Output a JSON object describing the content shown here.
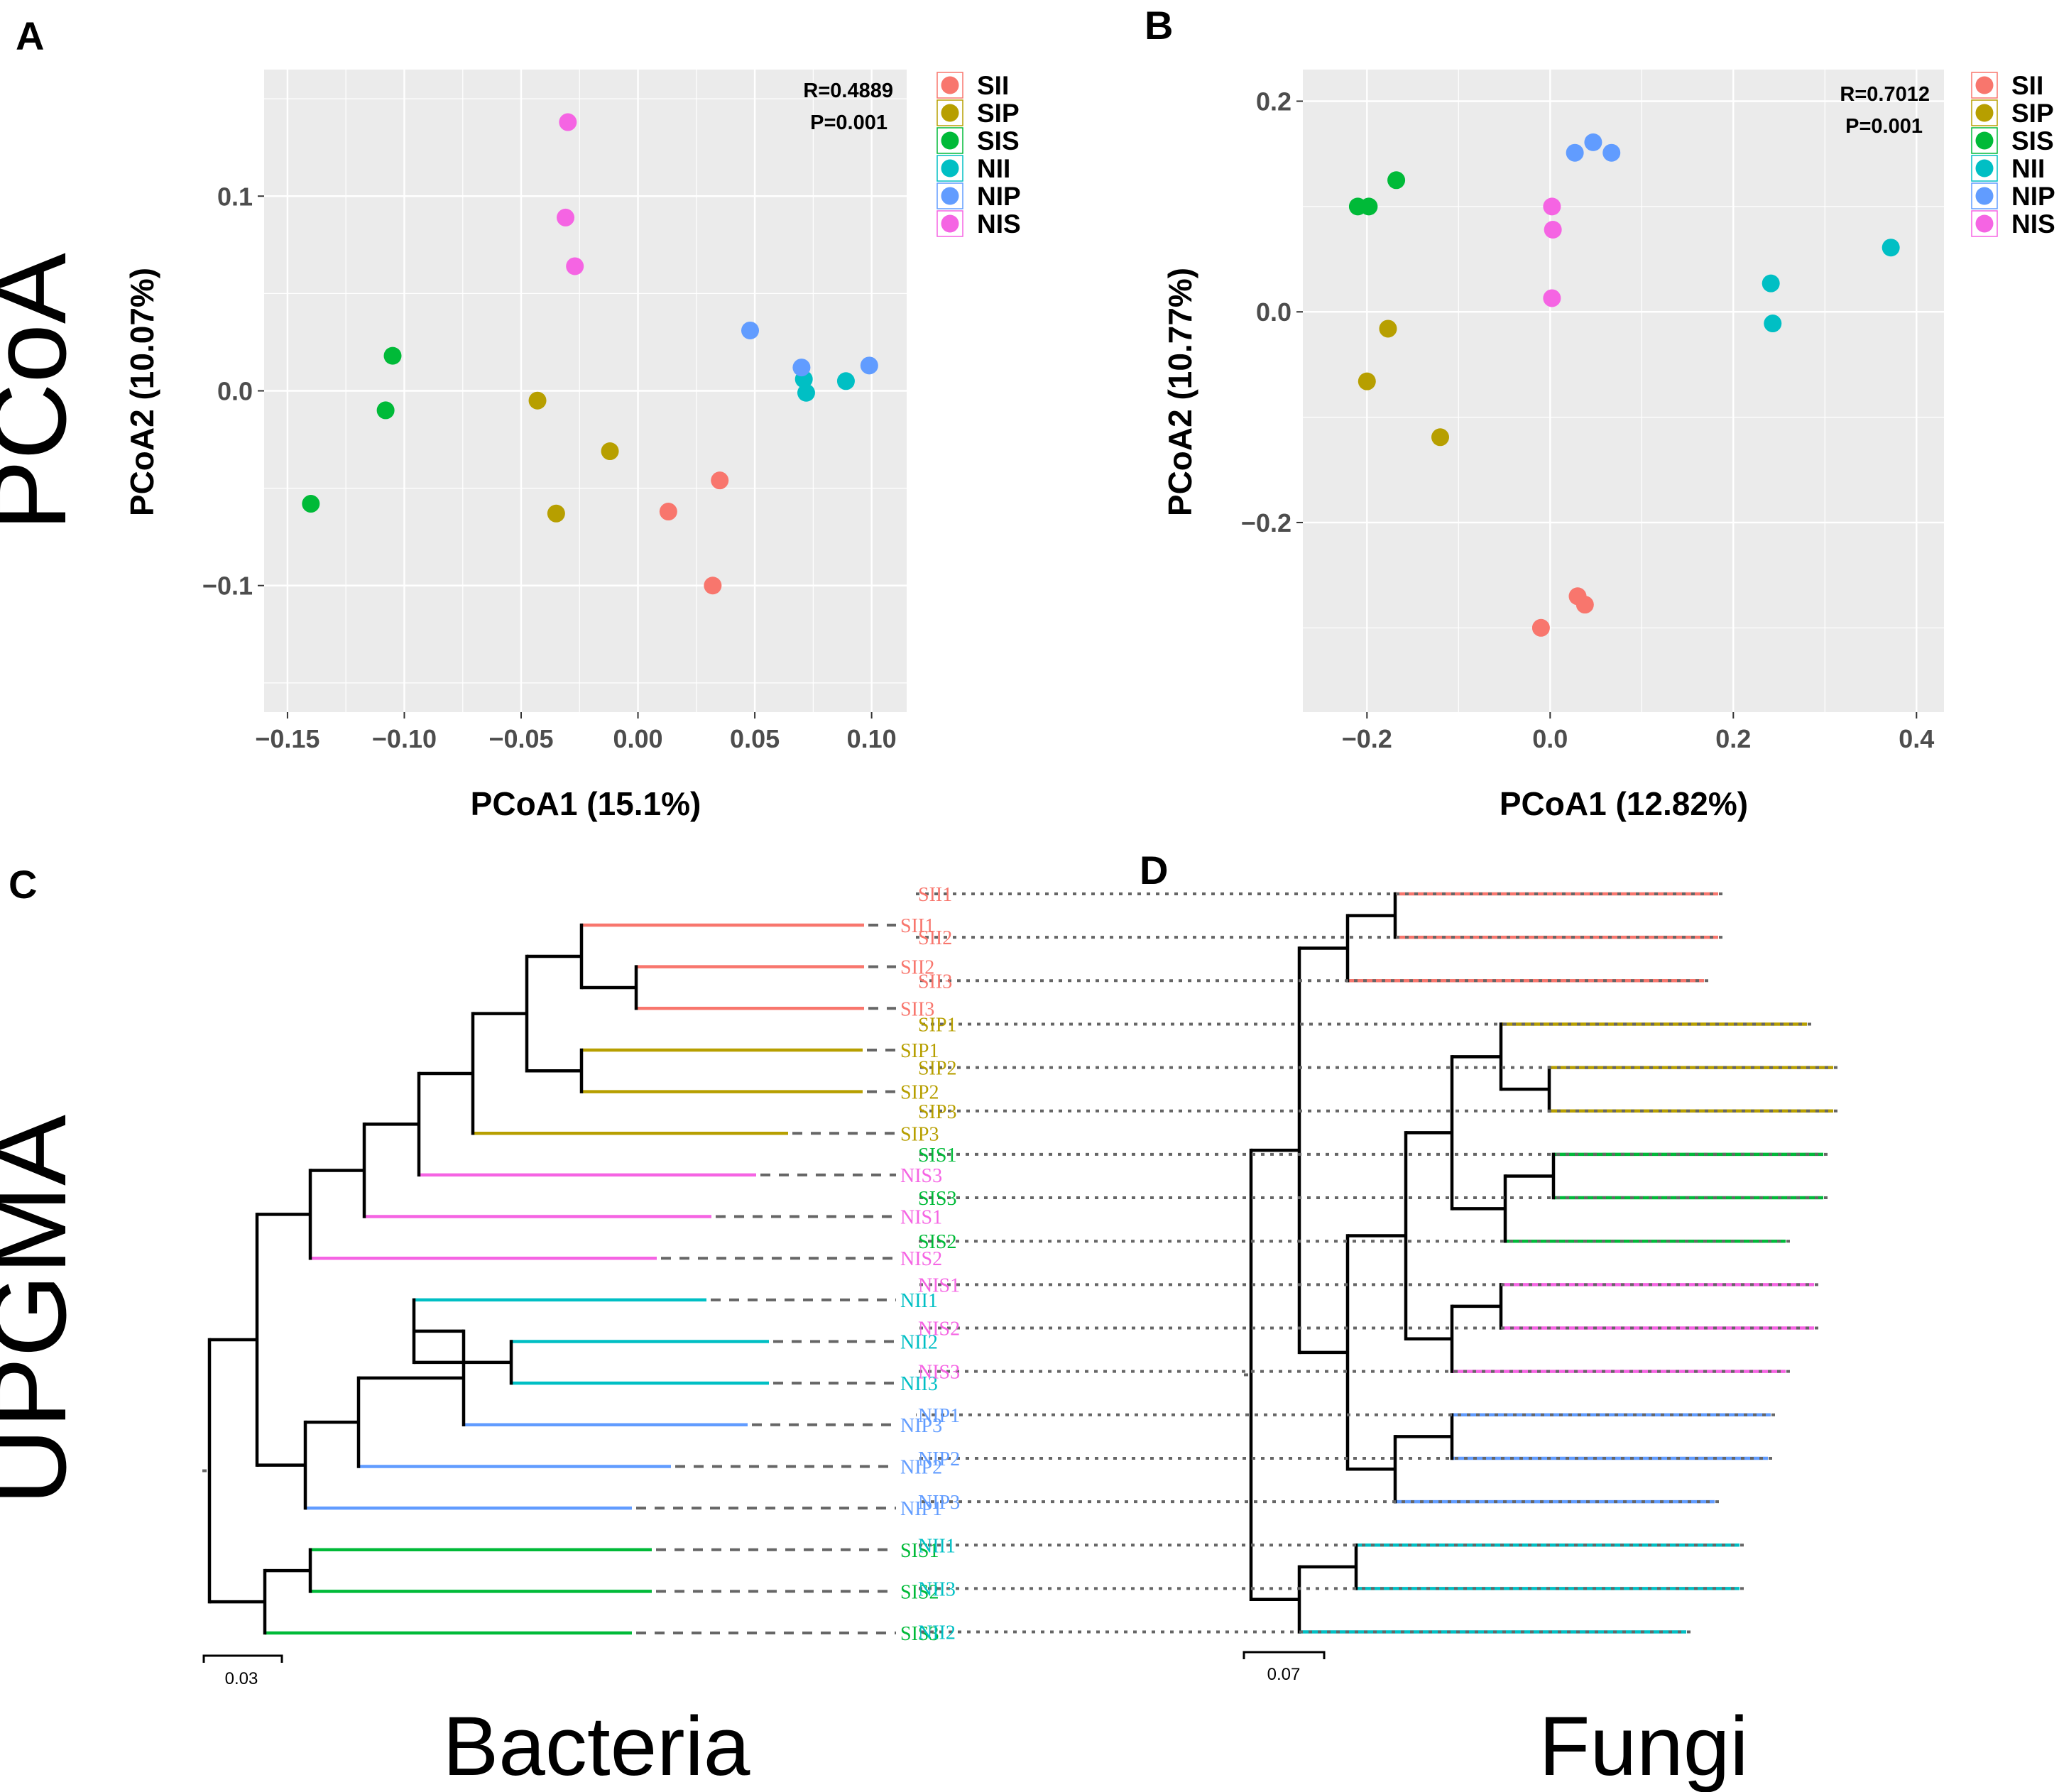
{
  "figure": {
    "row_labels": {
      "pcoa": "PCoA",
      "upgma": "UPGMA"
    },
    "col_labels": {
      "bacteria": "Bacteria",
      "fungi": "Fungi"
    }
  },
  "colors": {
    "SII": "#f8766d",
    "SIP": "#b79f00",
    "SIS": "#00ba38",
    "NII": "#00bfc4",
    "NIP": "#619cff",
    "NIS": "#f564e3",
    "panel_bg": "#ebebeb",
    "grid": "#ffffff"
  },
  "chart_data": [
    {
      "panel": "A",
      "type": "scatter",
      "xlabel": "PCoA1 (15.1%)",
      "ylabel": "PCoA2 (10.07%)",
      "xlim": [
        -0.16,
        0.115
      ],
      "ylim": [
        -0.165,
        0.165
      ],
      "xticks": [
        -0.15,
        -0.1,
        -0.05,
        0.0,
        0.05,
        0.1
      ],
      "xtick_labels": [
        "−0.15",
        "−0.10",
        "−0.05",
        "0.00",
        "0.05",
        "0.10"
      ],
      "yticks": [
        -0.1,
        0.0,
        0.1
      ],
      "ytick_labels": [
        "−0.1",
        "0.0",
        "0.1"
      ],
      "stats": {
        "r": "R=0.4889",
        "p": "P=0.001"
      },
      "legend": [
        "SII",
        "SIP",
        "SIS",
        "NII",
        "NIP",
        "NIS"
      ],
      "series": [
        {
          "name": "SII",
          "points": [
            [
              0.013,
              -0.062
            ],
            [
              0.035,
              -0.046
            ],
            [
              0.032,
              -0.1
            ]
          ]
        },
        {
          "name": "SIP",
          "points": [
            [
              -0.043,
              -0.005
            ],
            [
              -0.035,
              -0.063
            ],
            [
              -0.012,
              -0.031
            ]
          ]
        },
        {
          "name": "SIS",
          "points": [
            [
              -0.14,
              -0.058
            ],
            [
              -0.108,
              -0.01
            ],
            [
              -0.105,
              0.018
            ]
          ]
        },
        {
          "name": "NII",
          "points": [
            [
              0.071,
              0.006
            ],
            [
              0.072,
              -0.001
            ],
            [
              0.089,
              0.005
            ]
          ]
        },
        {
          "name": "NIP",
          "points": [
            [
              0.048,
              0.031
            ],
            [
              0.07,
              0.012
            ],
            [
              0.099,
              0.013
            ]
          ]
        },
        {
          "name": "NIS",
          "points": [
            [
              -0.03,
              0.138
            ],
            [
              -0.031,
              0.089
            ],
            [
              -0.027,
              0.064
            ]
          ]
        }
      ]
    },
    {
      "panel": "B",
      "type": "scatter",
      "xlabel": "PCoA1 (12.82%)",
      "ylabel": "PCoA2 (10.77%)",
      "xlim": [
        -0.27,
        0.43
      ],
      "ylim": [
        -0.38,
        0.23
      ],
      "xticks": [
        -0.2,
        0.0,
        0.2,
        0.4
      ],
      "xtick_labels": [
        "−0.2",
        "0.0",
        "0.2",
        "0.4"
      ],
      "yticks": [
        -0.2,
        0.0,
        0.2
      ],
      "ytick_labels": [
        "−0.2",
        "0.0",
        "0.2"
      ],
      "stats": {
        "r": "R=0.7012",
        "p": "P=0.001"
      },
      "legend": [
        "SII",
        "SIP",
        "SIS",
        "NII",
        "NIP",
        "NIS"
      ],
      "series": [
        {
          "name": "SII",
          "points": [
            [
              -0.01,
              -0.3
            ],
            [
              0.03,
              -0.27
            ],
            [
              0.038,
              -0.278
            ]
          ]
        },
        {
          "name": "SIP",
          "points": [
            [
              -0.177,
              -0.016
            ],
            [
              -0.2,
              -0.066
            ],
            [
              -0.12,
              -0.119
            ]
          ]
        },
        {
          "name": "SIS",
          "points": [
            [
              -0.21,
              0.1
            ],
            [
              -0.198,
              0.1
            ],
            [
              -0.168,
              0.125
            ]
          ]
        },
        {
          "name": "NII",
          "points": [
            [
              0.241,
              0.027
            ],
            [
              0.243,
              -0.011
            ],
            [
              0.372,
              0.061
            ]
          ]
        },
        {
          "name": "NIP",
          "points": [
            [
              0.027,
              0.151
            ],
            [
              0.047,
              0.161
            ],
            [
              0.067,
              0.151
            ]
          ]
        },
        {
          "name": "NIS",
          "points": [
            [
              0.002,
              0.1
            ],
            [
              0.003,
              0.078
            ],
            [
              0.002,
              0.013
            ]
          ]
        }
      ]
    }
  ],
  "trees": [
    {
      "panel": "C",
      "title": "Bacteria",
      "scale_bar_label": "0.03",
      "leaves": [
        {
          "label": "SII1",
          "group": "SII"
        },
        {
          "label": "SII2",
          "group": "SII"
        },
        {
          "label": "SII3",
          "group": "SII"
        },
        {
          "label": "SIP1",
          "group": "SIP"
        },
        {
          "label": "SIP2",
          "group": "SIP"
        },
        {
          "label": "SIP3",
          "group": "SIP"
        },
        {
          "label": "NIS3",
          "group": "NIS"
        },
        {
          "label": "NIS1",
          "group": "NIS"
        },
        {
          "label": "NIS2",
          "group": "NIS"
        },
        {
          "label": "NII1",
          "group": "NII"
        },
        {
          "label": "NII2",
          "group": "NII"
        },
        {
          "label": "NII3",
          "group": "NII"
        },
        {
          "label": "NIP3",
          "group": "NIP"
        },
        {
          "label": "NIP2",
          "group": "NIP"
        },
        {
          "label": "NIP1",
          "group": "NIP"
        },
        {
          "label": "SIS1",
          "group": "SIS"
        },
        {
          "label": "SIS2",
          "group": "SIS"
        },
        {
          "label": "SIS3",
          "group": "SIS"
        }
      ]
    },
    {
      "panel": "D",
      "title": "Fungi",
      "scale_bar_label": "0.07",
      "leaves": [
        {
          "label": "SII1",
          "group": "SII"
        },
        {
          "label": "SII2",
          "group": "SII"
        },
        {
          "label": "SII3",
          "group": "SII"
        },
        {
          "label": "SIP1",
          "group": "SIP"
        },
        {
          "label": "SIP2",
          "group": "SIP"
        },
        {
          "label": "SIP3",
          "group": "SIP"
        },
        {
          "label": "SIS1",
          "group": "SIS"
        },
        {
          "label": "SIS3",
          "group": "SIS"
        },
        {
          "label": "SIS2",
          "group": "SIS"
        },
        {
          "label": "NIS1",
          "group": "NIS"
        },
        {
          "label": "NIS2",
          "group": "NIS"
        },
        {
          "label": "NIS3",
          "group": "NIS"
        },
        {
          "label": "NIP1",
          "group": "NIP"
        },
        {
          "label": "NIP2",
          "group": "NIP"
        },
        {
          "label": "NIP3",
          "group": "NIP"
        },
        {
          "label": "NII1",
          "group": "NII"
        },
        {
          "label": "NII3",
          "group": "NII"
        },
        {
          "label": "NII2",
          "group": "NII"
        }
      ]
    }
  ]
}
